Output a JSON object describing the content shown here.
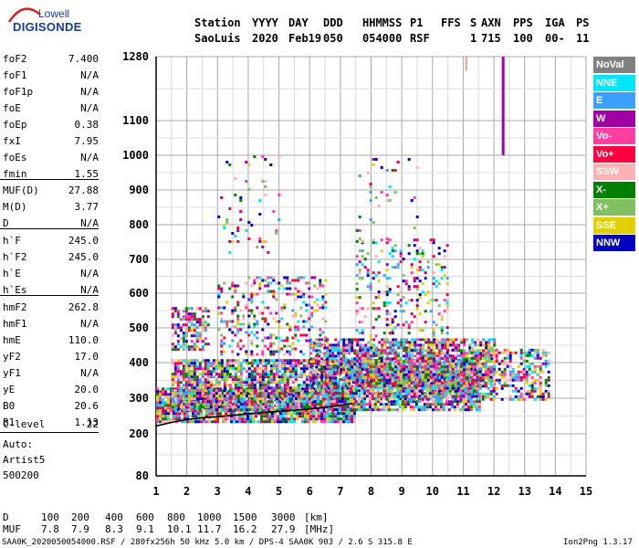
{
  "logo": {
    "top": "Lowell",
    "bottom": "DIGISONDE"
  },
  "header": {
    "labels": [
      "Station",
      "YYYY",
      "DAY",
      "DDD",
      "HHMMSS",
      "P1",
      "FFS",
      "S",
      "AXN",
      "PPS",
      "IGA",
      "PS"
    ],
    "values": [
      "SaoLuis",
      "2020",
      "Feb19",
      "050",
      "054000",
      "RSF",
      "1",
      "715",
      "100",
      "00-",
      "11"
    ]
  },
  "params": [
    {
      "name": "foF2",
      "value": "7.400"
    },
    {
      "name": "foF1",
      "value": "N/A"
    },
    {
      "name": "foF1p",
      "value": "N/A"
    },
    {
      "name": "foE",
      "value": "N/A"
    },
    {
      "name": "foEp",
      "value": "0.38"
    },
    {
      "name": "fxI",
      "value": "7.95"
    },
    {
      "name": "foEs",
      "value": "N/A"
    },
    {
      "name": "fmin",
      "value": "1.55"
    },
    {
      "name": "MUF(D)",
      "value": "27.88"
    },
    {
      "name": "M(D)",
      "value": "3.77"
    },
    {
      "name": "D",
      "value": "N/A"
    },
    {
      "name": "h`F",
      "value": "245.0"
    },
    {
      "name": "h`F2",
      "value": "245.0"
    },
    {
      "name": "h`E",
      "value": "N/A"
    },
    {
      "name": "h`Es",
      "value": "N/A"
    },
    {
      "name": "hmF2",
      "value": "262.8"
    },
    {
      "name": "hmF1",
      "value": "N/A"
    },
    {
      "name": "hmE",
      "value": "110.0"
    },
    {
      "name": "yF2",
      "value": "17.0"
    },
    {
      "name": "yF1",
      "value": "N/A"
    },
    {
      "name": "yE",
      "value": "20.0"
    },
    {
      "name": "B0",
      "value": "20.6"
    },
    {
      "name": "B1",
      "value": "1.13"
    }
  ],
  "clevel": {
    "name": "C-level",
    "value": "22"
  },
  "auto": {
    "line1": "Auto:",
    "line2": "Artist5",
    "line3": "500200"
  },
  "legend": [
    {
      "label": "NoVal",
      "bg": "#808080",
      "fg": "#ffffff"
    },
    {
      "label": "NNE",
      "bg": "#00e5ff",
      "fg": "#ffffff"
    },
    {
      "label": "E",
      "bg": "#3ca0ff",
      "fg": "#ffffff"
    },
    {
      "label": "W",
      "bg": "#a000a0",
      "fg": "#ffffff"
    },
    {
      "label": "Vo-",
      "bg": "#ff40a0",
      "fg": "#ffffff"
    },
    {
      "label": "Vo+",
      "bg": "#ff0040",
      "fg": "#ffffff"
    },
    {
      "label": "SSW",
      "bg": "#ffb0b0",
      "fg": "#ffffff"
    },
    {
      "label": "X-",
      "bg": "#008000",
      "fg": "#ffffff"
    },
    {
      "label": "X+",
      "bg": "#80c060",
      "fg": "#ffffff"
    },
    {
      "label": "SSE",
      "bg": "#e0d000",
      "fg": "#ffffff"
    },
    {
      "label": "NNW",
      "bg": "#0000c0",
      "fg": "#ffffff"
    }
  ],
  "mufrow": {
    "d_label": "D",
    "d_values": [
      "100",
      "200",
      "400",
      "600",
      "800",
      "1000",
      "1500",
      "3000"
    ],
    "d_unit": "[km]",
    "m_label": "MUF",
    "m_values": [
      "7.8",
      "7.9",
      "8.3",
      "9.1",
      "10.1",
      "11.7",
      "16.2",
      "27.9"
    ],
    "m_unit": "[MHz]"
  },
  "footer": {
    "left": "SAA0K_2020050054000.RSF / 280fx256h 50 kHz 5.0 km / DPS-4 SAA0K 903 / 2.6 S 315.8 E",
    "right": "Ion2Png 1.3.17"
  },
  "chart_data": {
    "type": "scatter",
    "x_ticks": [
      1,
      2,
      3,
      4,
      5,
      6,
      7,
      8,
      9,
      10,
      11,
      12,
      13,
      14,
      15
    ],
    "y_ticks": [
      80,
      200,
      300,
      400,
      500,
      600,
      700,
      800,
      900,
      1000,
      1100,
      1280
    ],
    "xlim": [
      1,
      15
    ],
    "ylim": [
      80,
      1280
    ],
    "grid": true,
    "trace": {
      "x": [
        1.0,
        1.5,
        2.0,
        2.5,
        3.0,
        3.5,
        4.0,
        4.5,
        5.0,
        5.5,
        6.0,
        6.5,
        7.0,
        7.4
      ],
      "y": [
        222,
        232,
        240,
        245,
        248,
        252,
        256,
        260,
        263,
        266,
        270,
        274,
        280,
        285
      ]
    },
    "bands": [
      {
        "x0": 1.0,
        "x1": 7.5,
        "y0": 230,
        "y1": 330,
        "density": 0.9
      },
      {
        "x0": 1.5,
        "x1": 11.5,
        "y0": 270,
        "y1": 410,
        "density": 0.8
      },
      {
        "x0": 6.0,
        "x1": 12.0,
        "y0": 330,
        "y1": 470,
        "density": 0.7
      },
      {
        "x0": 7.5,
        "x1": 13.8,
        "y0": 300,
        "y1": 440,
        "density": 0.5
      },
      {
        "x0": 1.5,
        "x1": 2.7,
        "y0": 440,
        "y1": 560,
        "density": 0.5
      },
      {
        "x0": 3.0,
        "x1": 6.5,
        "y0": 420,
        "y1": 650,
        "density": 0.25
      },
      {
        "x0": 7.5,
        "x1": 10.5,
        "y0": 480,
        "y1": 760,
        "density": 0.2
      },
      {
        "x0": 3.0,
        "x1": 5.0,
        "y0": 720,
        "y1": 1000,
        "density": 0.06
      },
      {
        "x0": 7.5,
        "x1": 9.5,
        "y0": 750,
        "y1": 1000,
        "density": 0.05
      }
    ],
    "vertical_streak": {
      "x": 12.3,
      "y0": 1000,
      "y1": 1280,
      "color": "#a000a0"
    },
    "small_streak": {
      "x": 11.1,
      "y0": 1240,
      "y1": 1280,
      "color": "#ff9090"
    }
  }
}
